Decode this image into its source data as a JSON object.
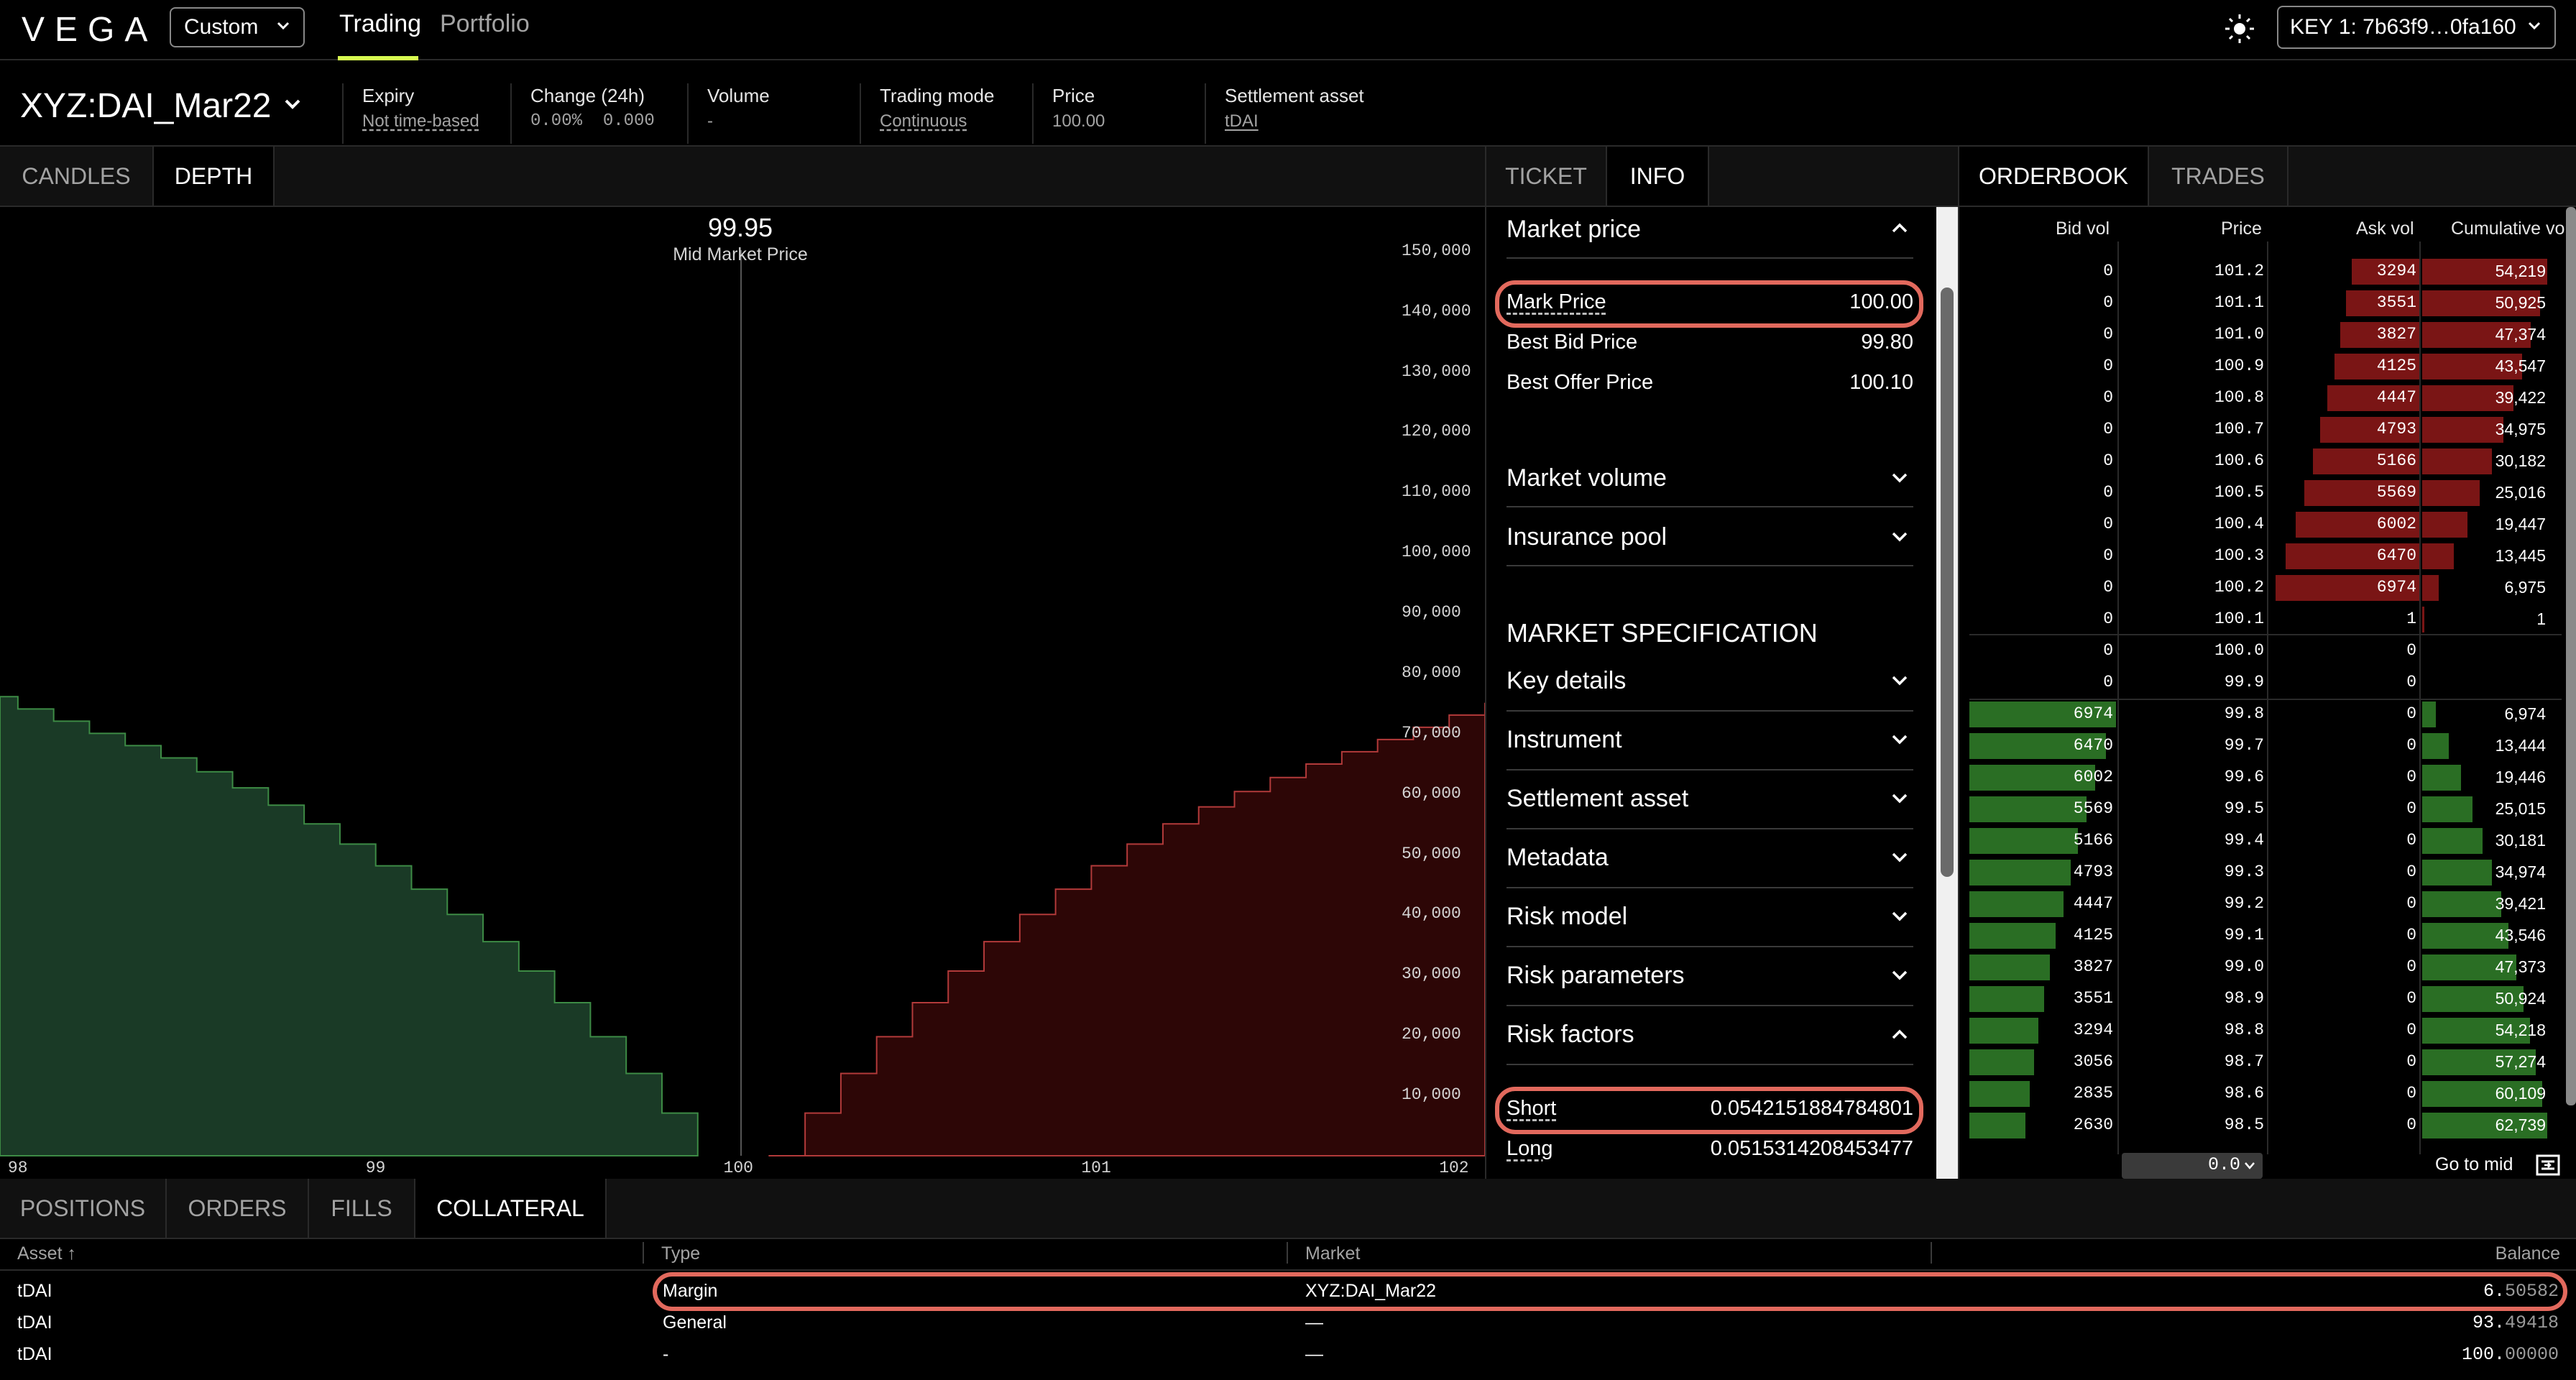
{
  "app": {
    "logo": "VEGA",
    "env": "Custom",
    "nav": [
      "Trading",
      "Portfolio"
    ],
    "key": "KEY 1: 7b63f9…0fa160"
  },
  "market": {
    "name": "XYZ:DAI_Mar22",
    "stats": [
      {
        "label": "Expiry",
        "value": "Not time-based"
      },
      {
        "label": "Change (24h)",
        "value": "0.00%  0.000"
      },
      {
        "label": "Volume",
        "value": "-"
      },
      {
        "label": "Trading mode",
        "value": "Continuous"
      },
      {
        "label": "Price",
        "value": "100.00"
      },
      {
        "label": "Settlement asset",
        "value": "tDAI"
      }
    ]
  },
  "chart_tabs": [
    "CANDLES",
    "DEPTH"
  ],
  "depth_chart": {
    "mid_price": "99.95",
    "mid_label": "Mid Market Price",
    "y_ticks": [
      "150,000",
      "140,000",
      "130,000",
      "120,000",
      "110,000",
      "100,000",
      "90,000",
      "80,000",
      "70,000",
      "60,000",
      "50,000",
      "40,000",
      "30,000",
      "20,000",
      "10,000"
    ],
    "x_ticks": [
      "98",
      "99",
      "100",
      "101",
      "102"
    ]
  },
  "chart_data": {
    "type": "area",
    "title": "",
    "xlim": [
      97.95,
      102.1
    ],
    "ylim": [
      0,
      155000
    ],
    "series": [
      {
        "name": "bids",
        "color": "#1a3a26",
        "x": [
          97.9,
          98.0,
          98.1,
          98.2,
          98.3,
          98.4,
          98.5,
          98.6,
          98.7,
          98.8,
          98.9,
          99.0,
          99.1,
          99.2,
          99.3,
          99.4,
          99.5,
          99.6,
          99.7,
          99.8
        ],
        "y": [
          75000,
          73000,
          71000,
          69000,
          67000,
          65000,
          62739,
          60109,
          57274,
          54218,
          50924,
          47373,
          43546,
          39421,
          34974,
          30181,
          25015,
          19446,
          13444,
          6974
        ]
      },
      {
        "name": "asks",
        "color": "#2d0606",
        "x": [
          100.1,
          100.2,
          100.3,
          100.4,
          100.5,
          100.6,
          100.7,
          100.8,
          100.9,
          101.0,
          101.1,
          101.2,
          101.3,
          101.4,
          101.5,
          101.6,
          101.7,
          101.8,
          101.9,
          102.0,
          102.1
        ],
        "y": [
          1,
          6975,
          13445,
          19447,
          25016,
          30182,
          34975,
          39422,
          43547,
          47374,
          50925,
          54219,
          57000,
          59500,
          61800,
          64000,
          66000,
          68000,
          70000,
          72000,
          74000
        ]
      }
    ]
  },
  "info_tabs": [
    "TICKET",
    "INFO"
  ],
  "info": {
    "market_price_title": "Market price",
    "mark_price_label": "Mark Price",
    "mark_price": "100.00",
    "best_bid_label": "Best Bid Price",
    "best_bid": "99.80",
    "best_offer_label": "Best Offer Price",
    "best_offer": "100.10",
    "market_volume": "Market volume",
    "insurance_pool": "Insurance pool",
    "spec_title": "MARKET SPECIFICATION",
    "key_details": "Key details",
    "instrument": "Instrument",
    "settlement_asset": "Settlement asset",
    "metadata": "Metadata",
    "risk_model": "Risk model",
    "risk_parameters": "Risk parameters",
    "risk_factors": "Risk factors",
    "short_label": "Short",
    "short_val": "0.0542151884784801",
    "long_label": "Long",
    "long_val": "0.0515314208453477"
  },
  "ob_tabs": [
    "ORDERBOOK",
    "TRADES"
  ],
  "orderbook": {
    "headers": [
      "Bid vol",
      "Price",
      "Ask vol",
      "Cumulative vol"
    ],
    "asks": [
      {
        "bid": "0",
        "price": "101.2",
        "ask": "3294",
        "cum": "54,219",
        "askpct": 0.47,
        "cumpct": 1.0
      },
      {
        "bid": "0",
        "price": "101.1",
        "ask": "3551",
        "cum": "50,925",
        "askpct": 0.51,
        "cumpct": 0.94
      },
      {
        "bid": "0",
        "price": "101.0",
        "ask": "3827",
        "cum": "47,374",
        "askpct": 0.55,
        "cumpct": 0.87
      },
      {
        "bid": "0",
        "price": "100.9",
        "ask": "4125",
        "cum": "43,547",
        "askpct": 0.59,
        "cumpct": 0.8
      },
      {
        "bid": "0",
        "price": "100.8",
        "ask": "4447",
        "cum": "39,422",
        "askpct": 0.64,
        "cumpct": 0.73
      },
      {
        "bid": "0",
        "price": "100.7",
        "ask": "4793",
        "cum": "34,975",
        "askpct": 0.69,
        "cumpct": 0.65
      },
      {
        "bid": "0",
        "price": "100.6",
        "ask": "5166",
        "cum": "30,182",
        "askpct": 0.74,
        "cumpct": 0.56
      },
      {
        "bid": "0",
        "price": "100.5",
        "ask": "5569",
        "cum": "25,016",
        "askpct": 0.8,
        "cumpct": 0.46
      },
      {
        "bid": "0",
        "price": "100.4",
        "ask": "6002",
        "cum": "19,447",
        "askpct": 0.86,
        "cumpct": 0.36
      },
      {
        "bid": "0",
        "price": "100.3",
        "ask": "6470",
        "cum": "13,445",
        "askpct": 0.93,
        "cumpct": 0.25
      },
      {
        "bid": "0",
        "price": "100.2",
        "ask": "6974",
        "cum": "6,975",
        "askpct": 1.0,
        "cumpct": 0.13
      },
      {
        "bid": "0",
        "price": "100.1",
        "ask": "1",
        "cum": "1",
        "askpct": 0.0,
        "cumpct": 0.01
      }
    ],
    "mid": [
      {
        "bid": "0",
        "price": "100.0",
        "ask": "0",
        "cum": ""
      },
      {
        "bid": "0",
        "price": "99.9",
        "ask": "0",
        "cum": ""
      }
    ],
    "bids": [
      {
        "bid": "6974",
        "price": "99.8",
        "ask": "0",
        "cum": "6,974",
        "bidpct": 1.0,
        "cumpct": 0.11
      },
      {
        "bid": "6470",
        "price": "99.7",
        "ask": "0",
        "cum": "13,444",
        "bidpct": 0.93,
        "cumpct": 0.21
      },
      {
        "bid": "6002",
        "price": "99.6",
        "ask": "0",
        "cum": "19,446",
        "bidpct": 0.86,
        "cumpct": 0.31
      },
      {
        "bid": "5569",
        "price": "99.5",
        "ask": "0",
        "cum": "25,015",
        "bidpct": 0.8,
        "cumpct": 0.4
      },
      {
        "bid": "5166",
        "price": "99.4",
        "ask": "0",
        "cum": "30,181",
        "bidpct": 0.74,
        "cumpct": 0.48
      },
      {
        "bid": "4793",
        "price": "99.3",
        "ask": "0",
        "cum": "34,974",
        "bidpct": 0.69,
        "cumpct": 0.56
      },
      {
        "bid": "4447",
        "price": "99.2",
        "ask": "0",
        "cum": "39,421",
        "bidpct": 0.64,
        "cumpct": 0.63
      },
      {
        "bid": "4125",
        "price": "99.1",
        "ask": "0",
        "cum": "43,546",
        "bidpct": 0.59,
        "cumpct": 0.69
      },
      {
        "bid": "3827",
        "price": "99.0",
        "ask": "0",
        "cum": "47,373",
        "bidpct": 0.55,
        "cumpct": 0.75
      },
      {
        "bid": "3551",
        "price": "98.9",
        "ask": "0",
        "cum": "50,924",
        "bidpct": 0.51,
        "cumpct": 0.81
      },
      {
        "bid": "3294",
        "price": "98.8",
        "ask": "0",
        "cum": "54,218",
        "bidpct": 0.47,
        "cumpct": 0.86
      },
      {
        "bid": "3056",
        "price": "98.7",
        "ask": "0",
        "cum": "57,274",
        "bidpct": 0.44,
        "cumpct": 0.91
      },
      {
        "bid": "2835",
        "price": "98.6",
        "ask": "0",
        "cum": "60,109",
        "bidpct": 0.41,
        "cumpct": 0.96
      },
      {
        "bid": "2630",
        "price": "98.5",
        "ask": "0",
        "cum": "62,739",
        "bidpct": 0.38,
        "cumpct": 1.0
      }
    ],
    "resolution": "0.0",
    "go_to_mid": "Go to mid"
  },
  "bottom_tabs": [
    "POSITIONS",
    "ORDERS",
    "FILLS",
    "COLLATERAL"
  ],
  "collateral": {
    "headers": {
      "asset": "Asset ↑",
      "type": "Type",
      "market": "Market",
      "balance": "Balance"
    },
    "rows": [
      {
        "asset": "tDAI",
        "type": "Margin",
        "market": "XYZ:DAI_Mar22",
        "balance_int": "6.",
        "balance_dec": "50582"
      },
      {
        "asset": "tDAI",
        "type": "General",
        "market": "—",
        "balance_int": "93.",
        "balance_dec": "49418"
      },
      {
        "asset": "tDAI",
        "type": "-",
        "market": "—",
        "balance_int": "100.",
        "balance_dec": "00000"
      }
    ]
  },
  "colors": {
    "accent": "#d7fb50",
    "highlight": "#e2695d",
    "bid": "#2a6e24",
    "ask": "#7a1515"
  }
}
